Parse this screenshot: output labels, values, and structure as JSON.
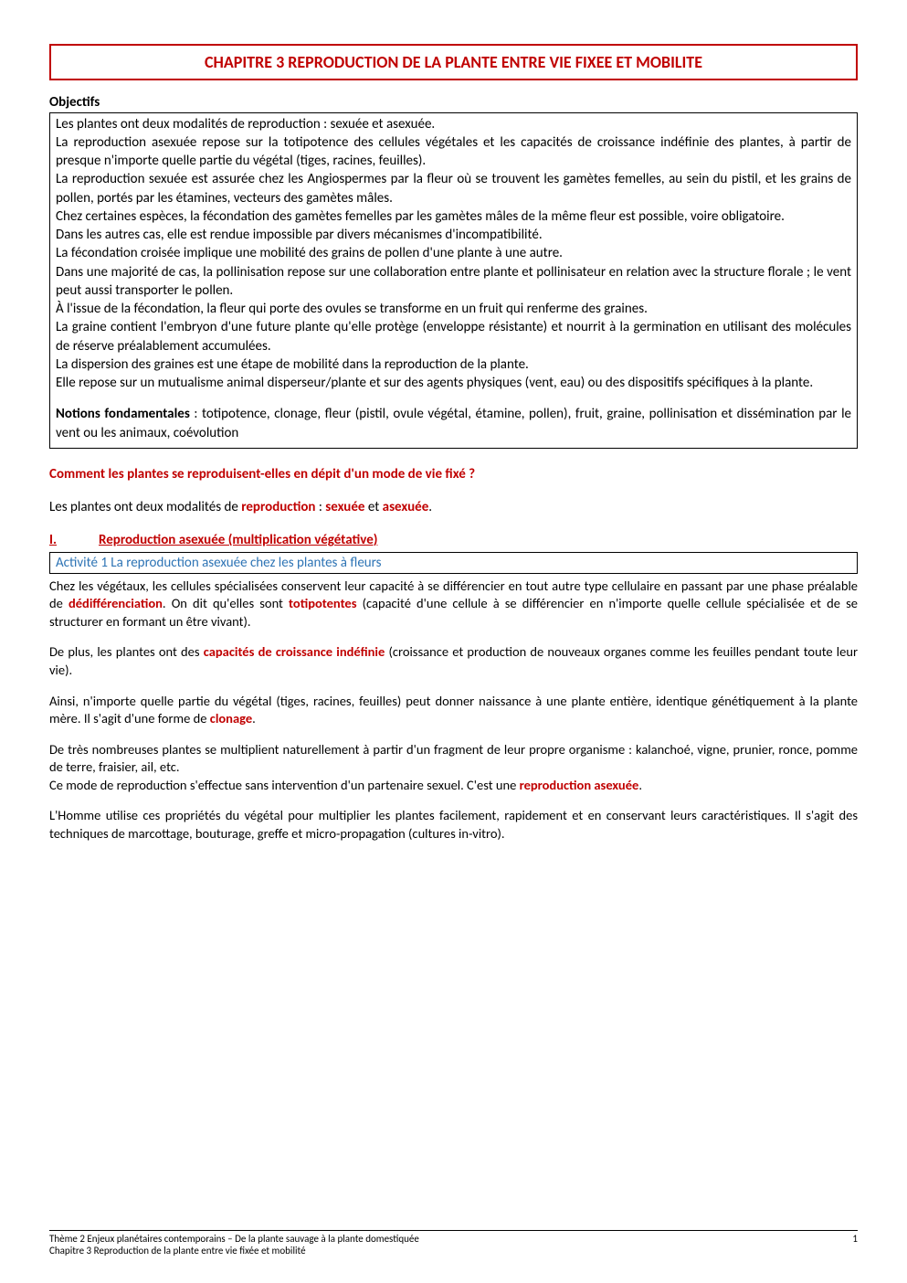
{
  "title": "CHAPITRE 3 REPRODUCTION DE LA PLANTE ENTRE VIE FIXEE ET MOBILITE",
  "title_color": "#c00000",
  "title_border_color": "#c00000",
  "title_fontsize_pt": 14,
  "objectifs": {
    "heading": "Objectifs",
    "lines": [
      "Les plantes ont deux modalités de reproduction : sexuée et asexuée.",
      "La reproduction asexuée repose sur la totipotence des cellules végétales et les capacités de croissance indéfinie des plantes, à partir de presque n'importe quelle partie du végétal (tiges, racines, feuilles).",
      "La reproduction sexuée est assurée chez les Angiospermes par la fleur où se trouvent les gamètes femelles, au sein du pistil, et les grains de pollen, portés par les étamines, vecteurs des gamètes mâles.",
      "Chez certaines espèces, la fécondation des gamètes femelles par les gamètes mâles de la même fleur est possible, voire obligatoire.",
      "Dans les autres cas, elle est rendue impossible par divers mécanismes d'incompatibilité.",
      "La fécondation croisée implique une mobilité des grains de pollen d'une plante à une autre.",
      "Dans une majorité de cas, la pollinisation repose sur une collaboration entre plante et pollinisateur en relation avec la structure florale ; le vent peut aussi transporter le pollen.",
      "À l'issue de la fécondation, la fleur qui porte des ovules se transforme en un fruit qui renferme des graines.",
      "La graine contient l'embryon d'une future plante qu'elle protège (enveloppe résistante) et nourrit à la germination en utilisant des molécules de réserve préalablement accumulées.",
      "La dispersion des graines est une étape de mobilité dans la reproduction de la plante.",
      "Elle repose sur un mutualisme animal disperseur/plante et sur des agents physiques (vent, eau) ou des dispositifs spécifiques à la plante."
    ],
    "notions_label": "Notions fondamentales",
    "notions_text": " : totipotence, clonage, fleur (pistil, ovule végétal, étamine, pollen), fruit, graine, pollinisation et dissémination par le vent ou les animaux, coévolution"
  },
  "question": "Comment les plantes se reproduisent-elles en dépit d'un mode de vie fixé ?",
  "intro": {
    "pre": "Les plantes ont deux modalités de ",
    "kw1": "reproduction",
    "mid1": " : ",
    "kw2": "sexuée",
    "mid2": " et ",
    "kw3": "asexuée",
    "post": "."
  },
  "section1": {
    "num": "I.",
    "title": "Reproduction asexuée (multiplication végétative)",
    "activity": "Activité 1 La reproduction asexuée chez les plantes à fleurs"
  },
  "para1": {
    "a": "Chez les végétaux, les cellules spécialisées conservent leur capacité à se différencier en tout autre type cellulaire en passant par une phase préalable de ",
    "kw1": "dédifférenciation",
    "b": ". On dit qu'elles sont ",
    "kw2": "totipotentes",
    "c": " (capacité d'une cellule à se différencier en n'importe quelle cellule spécialisée et de se structurer en formant un être vivant)."
  },
  "para2": {
    "a": "De plus, les plantes ont des ",
    "kw1": "capacités de croissance indéfinie",
    "b": " (croissance et production de nouveaux organes comme les feuilles pendant toute leur vie)."
  },
  "para3": {
    "a": "Ainsi, n'importe quelle partie du végétal (tiges, racines, feuilles) peut donner naissance à une plante entière, identique génétiquement à la plante mère. Il s'agit d'une forme de ",
    "kw1": "clonage",
    "b": "."
  },
  "para4": {
    "a": "De très nombreuses plantes se multiplient naturellement à partir d'un fragment de leur propre organisme : kalanchoé, vigne, prunier, ronce, pomme de terre, fraisier, ail, etc.",
    "b": "Ce mode de reproduction s'effectue sans intervention d'un partenaire sexuel. C'est une ",
    "kw1": "reproduction asexuée",
    "c": "."
  },
  "para5": "L'Homme utilise ces propriétés du végétal pour multiplier les plantes facilement, rapidement et en conservant leurs caractéristiques. Il s'agit des techniques de marcottage, bouturage, greffe et micro-propagation (cultures in-vitro).",
  "footer": {
    "line1": "Thème 2 Enjeux planétaires contemporains – De la plante sauvage à la plante domestiquée",
    "line2": "Chapitre 3 Reproduction de la plante entre vie fixée et mobilité",
    "page": "1"
  },
  "colors": {
    "red": "#c00000",
    "blue": "#2e74b5",
    "black": "#000000",
    "border_black": "#000000"
  },
  "fonts": {
    "family": "Calibri",
    "body_size_pt": 11,
    "small_size_pt": 11
  }
}
